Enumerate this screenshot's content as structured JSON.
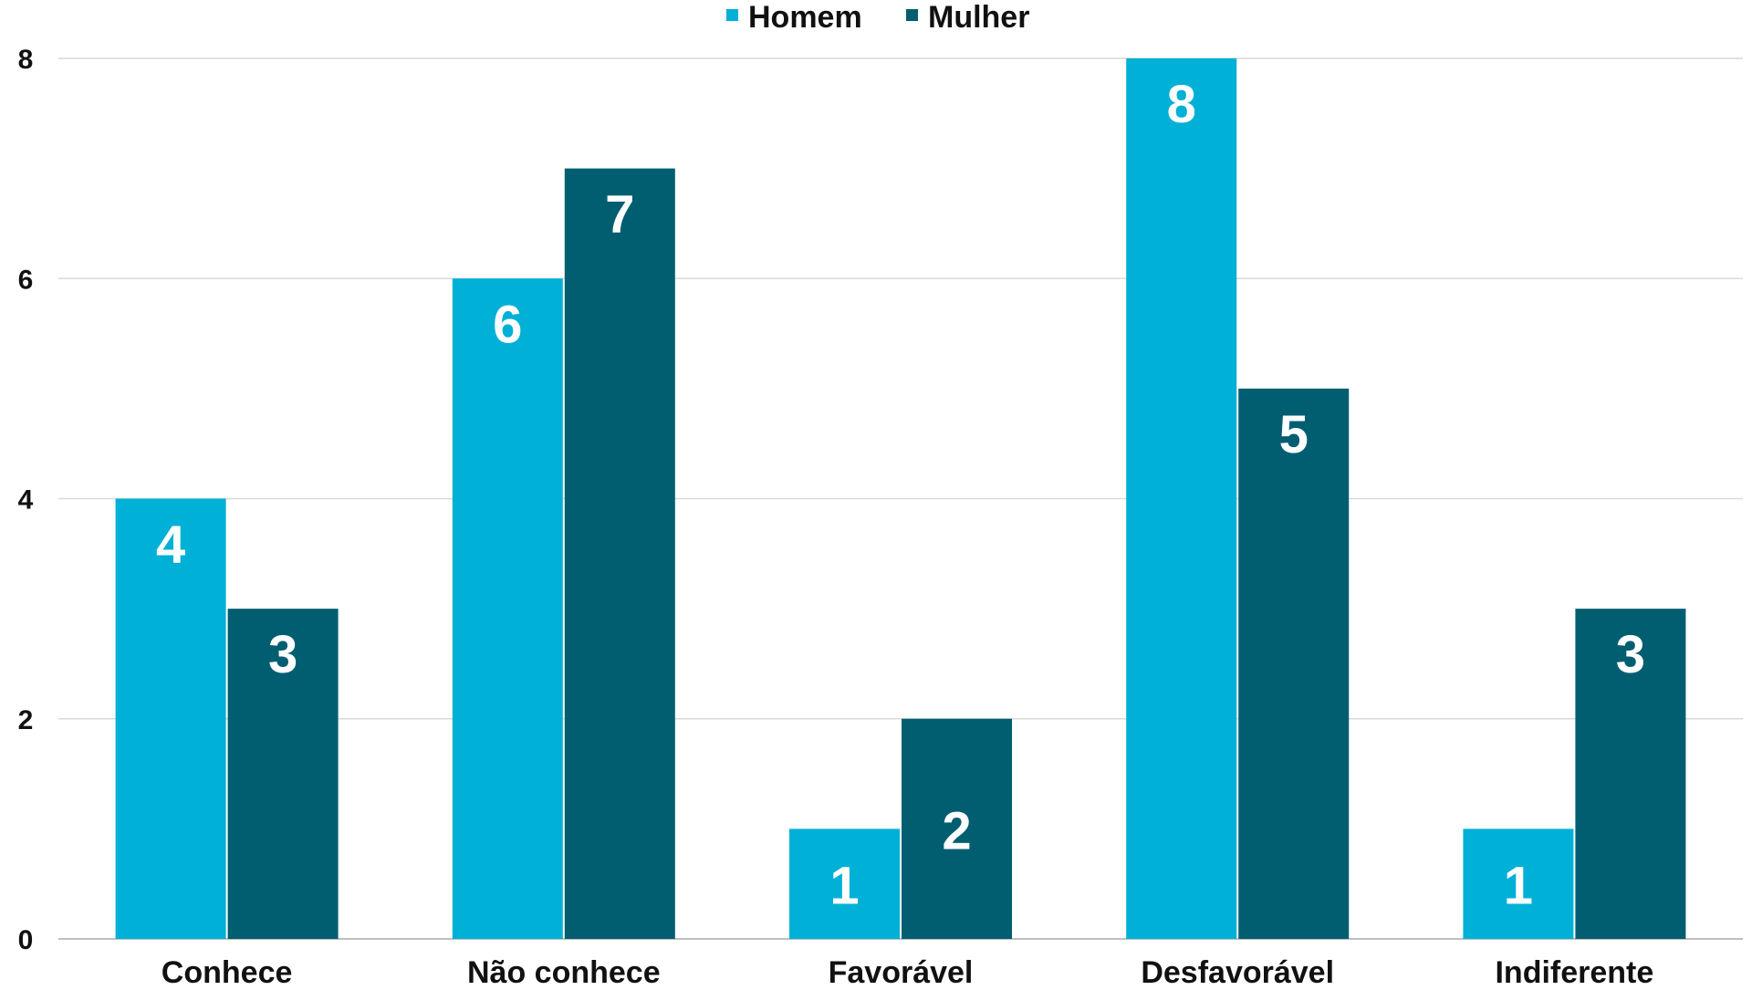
{
  "chart_data": {
    "type": "bar",
    "title": "",
    "xlabel": "",
    "ylabel": "",
    "categories": [
      "Conhece",
      "Não conhece",
      "Favorável",
      "Desfavorável",
      "Indiferente"
    ],
    "series": [
      {
        "name": "Homem",
        "values": [
          4,
          6,
          1,
          8,
          1
        ],
        "color": "#00B0D6"
      },
      {
        "name": "Mulher",
        "values": [
          3,
          7,
          2,
          5,
          3
        ],
        "color": "#005E70"
      }
    ],
    "ylim": [
      0,
      8
    ],
    "yticks": [
      0,
      2,
      4,
      6,
      8
    ],
    "grid": true,
    "legend_position": "top-center",
    "data_labels": true
  }
}
